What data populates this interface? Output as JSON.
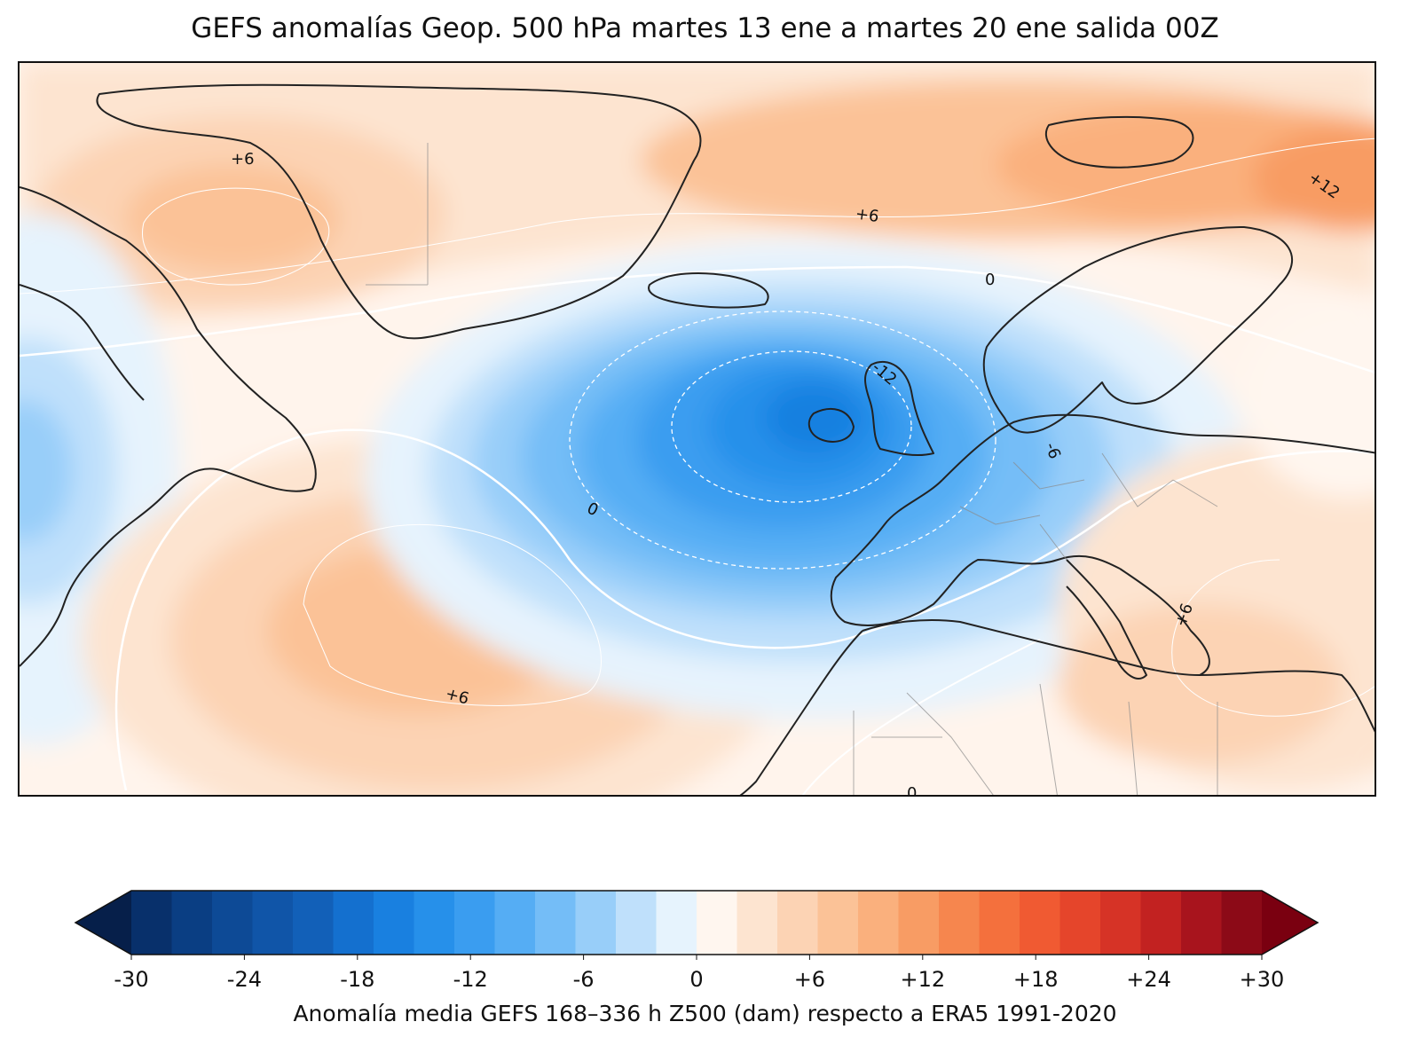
{
  "title": "GEFS anomalías Geop. 500 hPa martes 13 ene a martes 20 ene salida 00Z",
  "map": {
    "contour_labels": [
      {
        "id": "greenland",
        "text": "+6"
      },
      {
        "id": "norwegian-sea",
        "text": "+6"
      },
      {
        "id": "arctic-east",
        "text": "+12"
      },
      {
        "id": "north-sea",
        "text": "0"
      },
      {
        "id": "mid-atlantic",
        "text": "0"
      },
      {
        "id": "ireland",
        "text": "-12"
      },
      {
        "id": "central-europe",
        "text": "-6"
      },
      {
        "id": "subtropical-atlantic",
        "text": "+6"
      },
      {
        "id": "eastern-med",
        "text": "+6"
      },
      {
        "id": "sahara",
        "text": "0"
      }
    ]
  },
  "colorbar": {
    "colors": [
      "#08306b",
      "#0a3e83",
      "#0d4a96",
      "#1055a8",
      "#1260b8",
      "#1470cf",
      "#1980e0",
      "#2690ea",
      "#3a9df0",
      "#55adf4",
      "#74bdf7",
      "#98cef9",
      "#bfe0fb",
      "#e6f3fd",
      "#fff6ef",
      "#fde4d0",
      "#fcd3b4",
      "#fbc297",
      "#fab07d",
      "#f89c64",
      "#f6864e",
      "#f4703d",
      "#f05a32",
      "#e5452b",
      "#d63326",
      "#c22221",
      "#a8141d",
      "#8c0a17"
    ],
    "under_color": "#061f4a",
    "over_color": "#7a0010",
    "min": -30,
    "max": 30,
    "ticks": [
      "-30",
      "-24",
      "-18",
      "-12",
      "-6",
      "0",
      "+6",
      "+12",
      "+18",
      "+24",
      "+30"
    ],
    "tick_values": [
      -30,
      -24,
      -18,
      -12,
      -6,
      0,
      6,
      12,
      18,
      24,
      30
    ],
    "caption": "Anomalía media GEFS 168–336 h Z500 (dam) respecto a ERA5 1991-2020"
  }
}
